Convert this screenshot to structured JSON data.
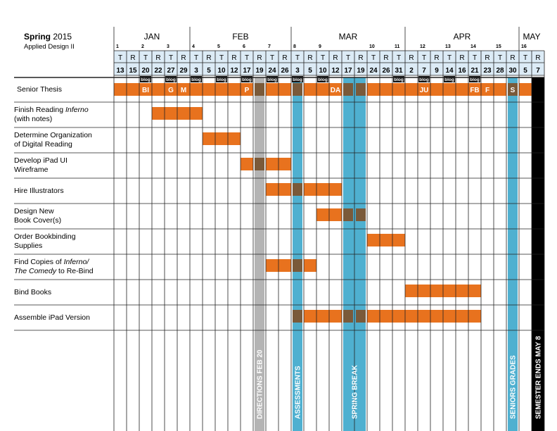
{
  "header": {
    "title_bold": "Spring",
    "title_year": "2015",
    "subtitle": "Applied Design II"
  },
  "months": [
    "JAN",
    "FEB",
    "MAR",
    "APR",
    "MAY"
  ],
  "days": [
    {
      "dow": "T",
      "date": "13",
      "week": "1"
    },
    {
      "dow": "R",
      "date": "15"
    },
    {
      "dow": "T",
      "date": "20",
      "week": "2",
      "blog": true
    },
    {
      "dow": "R",
      "date": "22"
    },
    {
      "dow": "T",
      "date": "27",
      "week": "3",
      "blog": true
    },
    {
      "dow": "R",
      "date": "29"
    },
    {
      "dow": "T",
      "date": "3",
      "week": "4",
      "blog": true
    },
    {
      "dow": "R",
      "date": "5"
    },
    {
      "dow": "T",
      "date": "10",
      "week": "5",
      "blog": true
    },
    {
      "dow": "R",
      "date": "12"
    },
    {
      "dow": "T",
      "date": "17",
      "week": "6",
      "blog": true
    },
    {
      "dow": "R",
      "date": "19"
    },
    {
      "dow": "T",
      "date": "24",
      "week": "7",
      "blog": true
    },
    {
      "dow": "R",
      "date": "26"
    },
    {
      "dow": "T",
      "date": "3",
      "week": "8",
      "blog": true
    },
    {
      "dow": "R",
      "date": "5"
    },
    {
      "dow": "T",
      "date": "10",
      "week": "9",
      "blog": true
    },
    {
      "dow": "R",
      "date": "12"
    },
    {
      "dow": "T",
      "date": "17"
    },
    {
      "dow": "R",
      "date": "19"
    },
    {
      "dow": "T",
      "date": "24",
      "week": "10"
    },
    {
      "dow": "R",
      "date": "26"
    },
    {
      "dow": "T",
      "date": "31",
      "week": "11",
      "blog": true
    },
    {
      "dow": "R",
      "date": "2"
    },
    {
      "dow": "T",
      "date": "7",
      "week": "12",
      "blog": true
    },
    {
      "dow": "R",
      "date": "9"
    },
    {
      "dow": "T",
      "date": "14",
      "week": "13",
      "blog": true
    },
    {
      "dow": "R",
      "date": "16"
    },
    {
      "dow": "T",
      "date": "21",
      "week": "14",
      "blog": true
    },
    {
      "dow": "R",
      "date": "23"
    },
    {
      "dow": "T",
      "date": "28",
      "week": "15"
    },
    {
      "dow": "R",
      "date": "30"
    },
    {
      "dow": "T",
      "date": "5",
      "week": "16"
    },
    {
      "dow": "R",
      "date": "7"
    }
  ],
  "blog_label": "blog",
  "tasks": [
    {
      "label_html": "Senior Thesis",
      "start": 0,
      "end": 33,
      "marks": [
        {
          "col": 2,
          "text": "BI"
        },
        {
          "col": 4,
          "text": "G"
        },
        {
          "col": 5,
          "text": "M"
        },
        {
          "col": 10,
          "text": "P"
        },
        {
          "col": 17,
          "text": "DA"
        },
        {
          "col": 24,
          "text": "JU"
        },
        {
          "col": 28,
          "text": "FB"
        },
        {
          "col": 29,
          "text": "F"
        },
        {
          "col": 31,
          "text": "S"
        }
      ]
    },
    {
      "label_parts": [
        {
          "t": "Finish Reading "
        },
        {
          "t": "Inferno",
          "i": true
        },
        {
          "br": true
        },
        {
          "t": "(with notes)"
        }
      ],
      "start": 3,
      "end": 7
    },
    {
      "label_parts": [
        {
          "t": "Determine Organization"
        },
        {
          "br": true
        },
        {
          "t": "of Digital Reading"
        }
      ],
      "start": 7,
      "end": 10
    },
    {
      "label_parts": [
        {
          "t": "Develop iPad UI"
        },
        {
          "br": true
        },
        {
          "t": "Wireframe"
        }
      ],
      "start": 10,
      "end": 14
    },
    {
      "label_parts": [
        {
          "t": "Hire Illustrators"
        }
      ],
      "start": 12,
      "end": 18
    },
    {
      "label_parts": [
        {
          "t": "Design New"
        },
        {
          "br": true
        },
        {
          "t": "Book Cover(s)"
        }
      ],
      "start": 16,
      "end": 20
    },
    {
      "label_parts": [
        {
          "t": "Order Bookbinding"
        },
        {
          "br": true
        },
        {
          "t": "Supplies"
        }
      ],
      "start": 20,
      "end": 23
    },
    {
      "label_parts": [
        {
          "t": "Find Copies of "
        },
        {
          "t": "Inferno/",
          "i": true
        },
        {
          "br": true
        },
        {
          "t": "The Comedy",
          "i": true
        },
        {
          "t": " to Re-Bind"
        }
      ],
      "start": 12,
      "end": 16
    },
    {
      "label_parts": [
        {
          "t": "Bind Books"
        }
      ],
      "start": 23,
      "end": 29
    },
    {
      "label_parts": [
        {
          "t": "Assemble iPad Version"
        }
      ],
      "start": 14,
      "end": 29
    }
  ],
  "events": [
    {
      "label": "DIRECTIONS FEB 20",
      "col": 11,
      "color": "#b4b4b4"
    },
    {
      "label": "ASSESSMENTS",
      "col": 14,
      "color": "#4fb0d0"
    },
    {
      "label": "SPRING BREAK",
      "col": 18,
      "col2": 19,
      "color": "#4fb0d0"
    },
    {
      "label": "SENIORS GRADES",
      "col": 31,
      "color": "#4fb0d0"
    }
  ],
  "semester_end": {
    "label": "SEMESTER ENDS MAY 8"
  },
  "colors": {
    "task_bar": "#e8721e",
    "overlap": "#7a5a3a",
    "header_fill": "#dcebf6",
    "grid": "#222222",
    "blog_bg": "#111111",
    "end_bar": "#000000"
  }
}
